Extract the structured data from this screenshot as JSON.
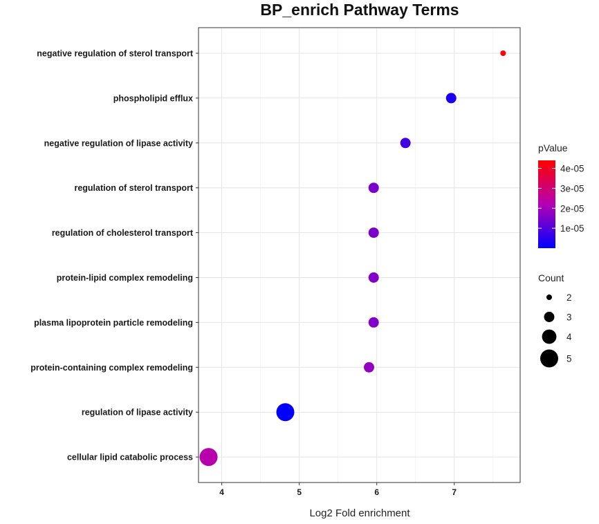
{
  "chart_data": {
    "type": "scatter",
    "title": "BP_enrich Pathway Terms",
    "xlabel": "Log2 Fold enrichment",
    "ylabel": "",
    "xlim": [
      3.7,
      7.85
    ],
    "xticks": [
      4,
      5,
      6,
      7
    ],
    "grid": true,
    "legend_position": "right",
    "color_scale": {
      "title": "pValue",
      "low_color": "#0000FF",
      "high_color": "#FF0000",
      "range": [
        0,
        4.4e-05
      ],
      "ticks": [
        {
          "value": 1e-05,
          "label": "1e-05"
        },
        {
          "value": 2e-05,
          "label": "2e-05"
        },
        {
          "value": 3e-05,
          "label": "3e-05"
        },
        {
          "value": 4e-05,
          "label": "4e-05"
        }
      ]
    },
    "size_scale": {
      "title": "Count",
      "values": [
        2,
        3,
        4,
        5
      ]
    },
    "points": [
      {
        "term": "negative regulation of sterol transport",
        "x": 7.63,
        "pvalue": 4.4e-05,
        "count": 2
      },
      {
        "term": "phospholipid efflux",
        "x": 6.96,
        "pvalue": 3e-06,
        "count": 3
      },
      {
        "term": "negative regulation of lipase activity",
        "x": 6.37,
        "pvalue": 8e-06,
        "count": 3
      },
      {
        "term": "regulation of sterol transport",
        "x": 5.96,
        "pvalue": 1.5e-05,
        "count": 3
      },
      {
        "term": "regulation of cholesterol transport",
        "x": 5.96,
        "pvalue": 1.5e-05,
        "count": 3
      },
      {
        "term": "protein-lipid complex remodeling",
        "x": 5.96,
        "pvalue": 1.6e-05,
        "count": 3
      },
      {
        "term": "plasma lipoprotein particle remodeling",
        "x": 5.96,
        "pvalue": 1.6e-05,
        "count": 3
      },
      {
        "term": "protein-containing complex remodeling",
        "x": 5.9,
        "pvalue": 1.8e-05,
        "count": 3
      },
      {
        "term": "regulation of lipase activity",
        "x": 4.82,
        "pvalue": 5e-07,
        "count": 5
      },
      {
        "term": "cellular lipid catabolic process",
        "x": 3.83,
        "pvalue": 2.3e-05,
        "count": 5
      }
    ]
  }
}
